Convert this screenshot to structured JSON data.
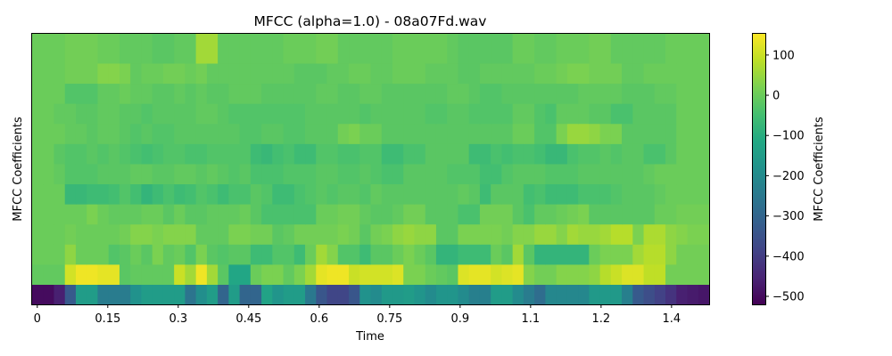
{
  "chart_data": {
    "type": "heatmap",
    "title": "MFCC (alpha=1.0) - 08a07Fd.wav",
    "xlabel": "Time",
    "ylabel": "MFCC Coefficients",
    "colorbar_label": "MFCC Coefficients",
    "colormap": "viridis",
    "x_ticks": [
      "0",
      "0.15",
      "0.3",
      "0.45",
      "0.6",
      "0.75",
      "0.9",
      "1.1",
      "1.2",
      "1.4"
    ],
    "x_tick_values": [
      0,
      0.15,
      0.3,
      0.45,
      0.6,
      0.75,
      0.9,
      1.05,
      1.2,
      1.35
    ],
    "xlim": [
      -0.011,
      1.43
    ],
    "frame_width": 0.0232,
    "n_frames": 62,
    "n_coefficients": 13,
    "clim": [
      -520,
      155
    ],
    "colorbar_ticks": [
      100,
      0,
      -100,
      -200,
      -300,
      -400,
      -500
    ],
    "colorbar_tick_labels": [
      "100",
      "0",
      "−100",
      "−200",
      "−300",
      "−400",
      "−500"
    ],
    "rows": [
      [
        -500,
        -500,
        -460,
        -330,
        -150,
        -150,
        -240,
        -240,
        -240,
        -180,
        -150,
        -150,
        -150,
        -150,
        -260,
        -190,
        -150,
        -300,
        -150,
        -300,
        -300,
        -130,
        -170,
        -150,
        -150,
        -250,
        -340,
        -380,
        -380,
        -340,
        -180,
        -200,
        -160,
        -160,
        -150,
        -170,
        -200,
        -170,
        -170,
        -200,
        -230,
        -230,
        -150,
        -150,
        -200,
        -240,
        -280,
        -210,
        -210,
        -210,
        -210,
        -160,
        -160,
        -160,
        -230,
        -330,
        -360,
        -390,
        -420,
        -460,
        -470,
        -480
      ],
      [
        -10,
        -10,
        -10,
        110,
        140,
        140,
        130,
        130,
        -20,
        -10,
        -10,
        -10,
        -10,
        100,
        60,
        140,
        60,
        -20,
        -120,
        -120,
        0,
        20,
        20,
        -10,
        20,
        60,
        130,
        140,
        140,
        100,
        110,
        110,
        110,
        120,
        20,
        20,
        0,
        -10,
        -20,
        120,
        130,
        130,
        110,
        120,
        130,
        30,
        10,
        10,
        30,
        30,
        30,
        40,
        80,
        100,
        120,
        120,
        90,
        90,
        10,
        10,
        10,
        10
      ],
      [
        0,
        0,
        0,
        40,
        0,
        0,
        0,
        -30,
        -20,
        0,
        -20,
        20,
        -10,
        0,
        -30,
        20,
        -20,
        -30,
        -20,
        -20,
        -60,
        -60,
        -30,
        -30,
        -60,
        0,
        60,
        30,
        -30,
        -30,
        -60,
        -20,
        -20,
        0,
        20,
        0,
        -20,
        -80,
        -80,
        -60,
        -60,
        -60,
        0,
        -20,
        60,
        -20,
        -80,
        -80,
        -80,
        -80,
        -80,
        0,
        20,
        20,
        20,
        60,
        80,
        80,
        40,
        10,
        10,
        10
      ],
      [
        0,
        0,
        0,
        10,
        0,
        0,
        0,
        0,
        10,
        30,
        30,
        20,
        30,
        30,
        30,
        -10,
        -10,
        -10,
        20,
        20,
        10,
        10,
        -20,
        -10,
        10,
        10,
        10,
        10,
        20,
        10,
        -20,
        10,
        20,
        40,
        50,
        40,
        40,
        -20,
        -20,
        20,
        20,
        20,
        20,
        10,
        30,
        30,
        50,
        50,
        30,
        60,
        50,
        50,
        60,
        80,
        80,
        20,
        70,
        70,
        40,
        30,
        20,
        20
      ],
      [
        0,
        0,
        0,
        0,
        0,
        20,
        0,
        -10,
        -10,
        -10,
        0,
        0,
        -20,
        0,
        -20,
        -20,
        -10,
        -10,
        -10,
        0,
        -20,
        -40,
        -40,
        -40,
        -40,
        -40,
        0,
        0,
        10,
        10,
        -10,
        -20,
        -20,
        -10,
        10,
        10,
        -20,
        -20,
        -20,
        -40,
        -40,
        10,
        10,
        10,
        -20,
        -40,
        -10,
        -10,
        0,
        10,
        20,
        -20,
        -20,
        -20,
        -20,
        -20,
        -20,
        0,
        0,
        10,
        10,
        10
      ],
      [
        0,
        0,
        0,
        -70,
        -70,
        -60,
        -60,
        -50,
        -30,
        -50,
        -80,
        -60,
        -40,
        -60,
        -50,
        -30,
        -40,
        -60,
        -40,
        -40,
        -20,
        -30,
        -60,
        -60,
        -40,
        -30,
        -20,
        -30,
        -20,
        -20,
        -30,
        -10,
        -20,
        -20,
        -20,
        -20,
        -20,
        -20,
        -20,
        -10,
        -20,
        -60,
        -20,
        -20,
        -20,
        -50,
        -40,
        -60,
        -60,
        -60,
        -40,
        -40,
        -40,
        -30,
        -20,
        -20,
        -20,
        -10,
        0,
        0,
        0,
        0
      ],
      [
        0,
        0,
        -10,
        -30,
        -30,
        -30,
        -20,
        -20,
        -20,
        -10,
        -10,
        -20,
        -20,
        -10,
        -10,
        -20,
        -10,
        -20,
        -30,
        -20,
        -40,
        -40,
        -40,
        -30,
        -30,
        -30,
        -20,
        -20,
        -30,
        -30,
        -20,
        -30,
        -40,
        -40,
        -20,
        -20,
        -20,
        -20,
        -30,
        -30,
        -30,
        -50,
        -50,
        -30,
        -20,
        -20,
        -20,
        -30,
        -30,
        -30,
        -20,
        -20,
        -20,
        -20,
        -20,
        -20,
        -10,
        0,
        0,
        0,
        0,
        0
      ],
      [
        0,
        0,
        -20,
        -30,
        -30,
        -20,
        -30,
        -20,
        -30,
        -40,
        -50,
        -40,
        -30,
        -30,
        -40,
        -40,
        -30,
        -30,
        -30,
        -30,
        -60,
        -70,
        -50,
        -40,
        -60,
        -60,
        -30,
        -30,
        -40,
        -40,
        -30,
        -30,
        -60,
        -60,
        -40,
        -40,
        -20,
        -20,
        -20,
        -20,
        -60,
        -60,
        -40,
        -50,
        -40,
        -40,
        -50,
        -70,
        -70,
        -40,
        -30,
        -30,
        -20,
        -30,
        -20,
        -20,
        -40,
        -40,
        -20,
        0,
        0,
        0
      ],
      [
        0,
        0,
        0,
        -10,
        -10,
        -20,
        -10,
        -10,
        -20,
        -30,
        -20,
        -30,
        -30,
        -20,
        -20,
        -20,
        -20,
        -20,
        -20,
        -30,
        -30,
        -20,
        -20,
        -30,
        -30,
        -20,
        -20,
        -20,
        10,
        20,
        0,
        0,
        -20,
        -20,
        -20,
        -20,
        -20,
        -20,
        -20,
        -20,
        -20,
        -20,
        -20,
        -20,
        0,
        0,
        -30,
        -30,
        20,
        50,
        50,
        40,
        20,
        20,
        -20,
        -20,
        -20,
        -20,
        -20,
        0,
        0,
        0
      ],
      [
        0,
        0,
        -10,
        -10,
        -20,
        -20,
        -10,
        -10,
        -20,
        -20,
        -30,
        -20,
        -20,
        -20,
        -20,
        -10,
        -10,
        -20,
        -30,
        -30,
        -30,
        -30,
        -30,
        -30,
        -30,
        -20,
        -20,
        -20,
        -20,
        -20,
        -30,
        -20,
        -20,
        -20,
        -20,
        -20,
        -30,
        -30,
        -20,
        -20,
        -30,
        -30,
        -30,
        -30,
        -10,
        -10,
        -30,
        -40,
        -10,
        -10,
        -10,
        -20,
        -20,
        -40,
        -40,
        -20,
        -20,
        -20,
        -20,
        0,
        0,
        0
      ],
      [
        0,
        0,
        0,
        -30,
        -30,
        -30,
        -10,
        -10,
        0,
        -10,
        -10,
        -20,
        -20,
        -10,
        -20,
        -10,
        -20,
        -20,
        -10,
        -10,
        -10,
        -20,
        -20,
        -20,
        -20,
        -20,
        -10,
        -10,
        -20,
        -20,
        -10,
        -10,
        -20,
        -20,
        -20,
        -20,
        -20,
        -20,
        -10,
        -10,
        -20,
        -30,
        -30,
        -20,
        -20,
        -20,
        -20,
        -20,
        -20,
        -20,
        -10,
        -10,
        -10,
        -10,
        -20,
        -20,
        -20,
        -10,
        -10,
        0,
        0,
        0
      ],
      [
        0,
        0,
        0,
        10,
        10,
        10,
        30,
        30,
        20,
        -10,
        0,
        0,
        10,
        10,
        0,
        10,
        -10,
        -10,
        -10,
        -10,
        -10,
        -10,
        -10,
        -10,
        -20,
        -20,
        -20,
        -10,
        -10,
        0,
        0,
        -10,
        -10,
        0,
        0,
        0,
        -10,
        -10,
        -10,
        -20,
        -20,
        -10,
        -10,
        -10,
        -10,
        -10,
        0,
        0,
        10,
        20,
        20,
        10,
        10,
        10,
        -10,
        -10,
        0,
        0,
        0,
        0,
        0,
        0
      ],
      [
        0,
        0,
        0,
        10,
        10,
        10,
        0,
        0,
        -10,
        -10,
        -10,
        -20,
        -20,
        -10,
        -10,
        60,
        60,
        -10,
        -10,
        -10,
        -10,
        -10,
        -10,
        0,
        0,
        0,
        10,
        10,
        -10,
        -10,
        -10,
        -10,
        -10,
        0,
        0,
        0,
        0,
        0,
        -10,
        -20,
        -20,
        -20,
        -20,
        -20,
        0,
        0,
        -10,
        -10,
        0,
        0,
        0,
        10,
        10,
        -10,
        -10,
        -10,
        -10,
        -10,
        0,
        0,
        0,
        0
      ]
    ]
  }
}
